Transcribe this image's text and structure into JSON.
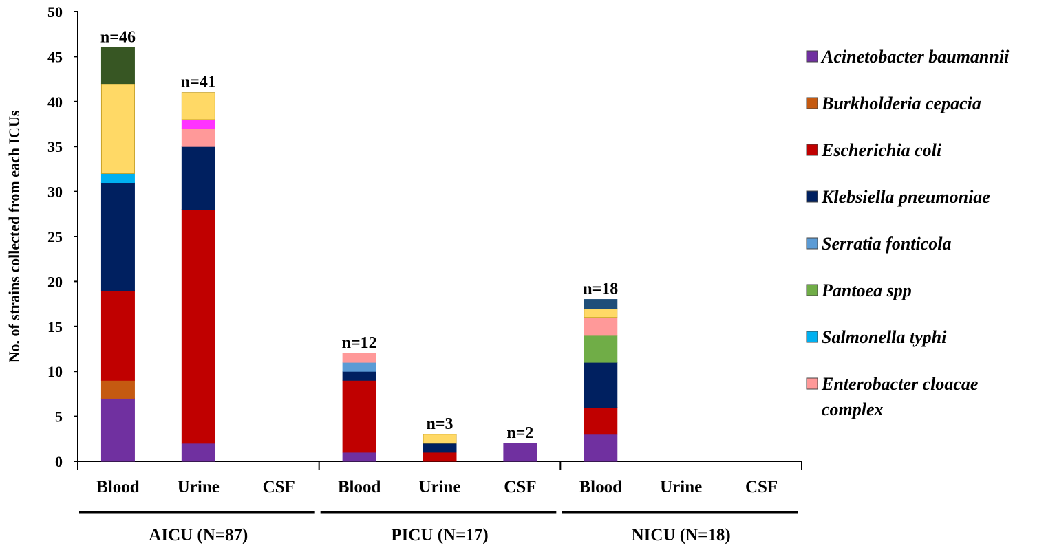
{
  "chart_data": {
    "type": "bar",
    "stacked": true,
    "ylabel": "No. of strains collected from each ICUs",
    "ylim": [
      0,
      50
    ],
    "yticks": [
      0,
      5,
      10,
      15,
      20,
      25,
      30,
      35,
      40,
      45,
      50
    ],
    "groups": [
      {
        "label": "AICU (N=87)",
        "categories": [
          "Blood",
          "Urine",
          "CSF"
        ]
      },
      {
        "label": "PICU (N=17)",
        "categories": [
          "Blood",
          "Urine",
          "CSF"
        ]
      },
      {
        "label": "NICU (N=18)",
        "categories": [
          "Blood",
          "Urine",
          "CSF"
        ]
      }
    ],
    "totals_labels": [
      "n=46",
      "n=41",
      "",
      "n=12",
      "n=3",
      "n=2",
      "n=18",
      "",
      ""
    ],
    "series": [
      {
        "name": "Acinetobacter baumannii",
        "color": "#7030a0",
        "legend": true,
        "values": [
          7,
          2,
          0,
          1,
          0,
          2,
          3,
          0,
          0
        ]
      },
      {
        "name": "Burkholderia cepacia",
        "color": "#c55a11",
        "legend": true,
        "values": [
          2,
          0,
          0,
          0,
          0,
          0,
          0,
          0,
          0
        ]
      },
      {
        "name": "Escherichia coli",
        "color": "#c00000",
        "legend": true,
        "values": [
          10,
          26,
          0,
          8,
          1,
          0,
          3,
          0,
          0
        ]
      },
      {
        "name": "Klebsiella pneumoniae",
        "color": "#002060",
        "legend": true,
        "values": [
          12,
          7,
          0,
          1,
          1,
          0,
          5,
          0,
          0
        ]
      },
      {
        "name": "Serratia fonticola",
        "color": "#5b9bd5",
        "legend": true,
        "values": [
          0,
          0,
          0,
          1,
          0,
          0,
          0,
          0,
          0
        ]
      },
      {
        "name": "Pantoea spp",
        "color": "#70ad47",
        "legend": true,
        "values": [
          0,
          0,
          0,
          0,
          0,
          0,
          3,
          0,
          0
        ]
      },
      {
        "name": "Salmonella typhi",
        "color": "#00b0f0",
        "legend": true,
        "values": [
          1,
          0,
          0,
          0,
          0,
          0,
          0,
          0,
          0
        ]
      },
      {
        "name": "Enterobacter cloacae complex",
        "color": "#ff9999",
        "legend": true,
        "values": [
          0,
          2,
          0,
          1,
          0,
          0,
          2,
          0,
          0
        ]
      },
      {
        "name": "",
        "color": "#ff33ff",
        "legend": false,
        "values": [
          0,
          1,
          0,
          0,
          0,
          0,
          0,
          0,
          0
        ]
      },
      {
        "name": "",
        "color": "#ffd966",
        "legend": false,
        "values": [
          10,
          3,
          0,
          0,
          1,
          0,
          1,
          0,
          0
        ]
      },
      {
        "name": "",
        "color": "#375623",
        "legend": false,
        "values": [
          4,
          0,
          0,
          0,
          0,
          0,
          0,
          0,
          0
        ]
      },
      {
        "name": "",
        "color": "#1f4e79",
        "legend": false,
        "values": [
          0,
          0,
          0,
          0,
          0,
          0,
          1,
          0,
          0
        ]
      }
    ],
    "legend_lines": [
      [
        "Acinetobacter baumannii"
      ],
      [
        "Burkholderia cepacia"
      ],
      [
        "Escherichia coli"
      ],
      [
        "Klebsiella pneumoniae"
      ],
      [
        "Serratia fonticola"
      ],
      [
        "Pantoea spp"
      ],
      [
        "Salmonella typhi"
      ],
      [
        "Enterobacter cloacae",
        "complex"
      ]
    ],
    "legend_position": "right"
  }
}
